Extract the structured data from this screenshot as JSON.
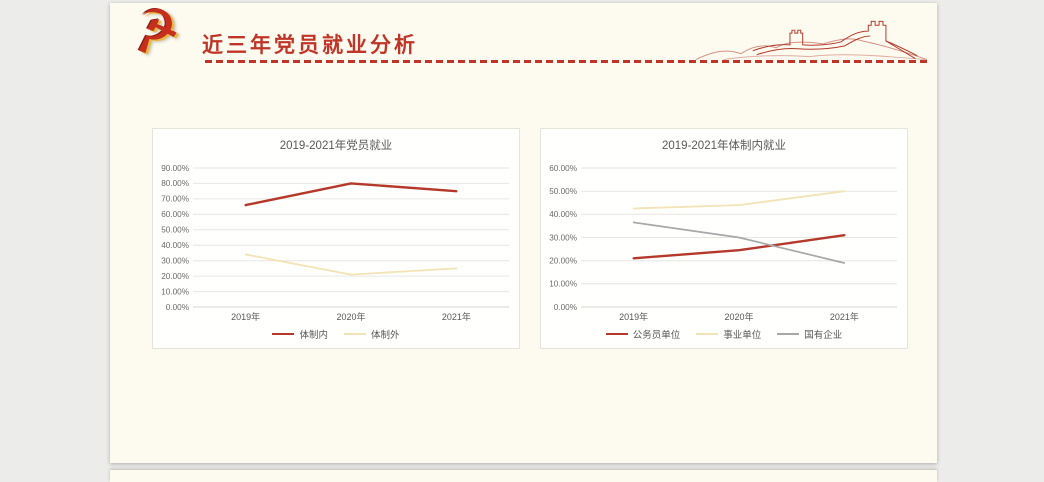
{
  "page": {
    "background": "#ececeb"
  },
  "header": {
    "title": "近三年党员就业分析",
    "title_color": "#bf3629",
    "divider_color": "#bf3629",
    "emblem_icon": {
      "name": "party-emblem-icon",
      "glyph": "☭"
    },
    "wall_icon": {
      "name": "great-wall-illustration",
      "color": "#b5392b"
    }
  },
  "chart_data": [
    {
      "type": "line",
      "title": "2019-2021年党员就业",
      "categories": [
        "2019年",
        "2020年",
        "2021年"
      ],
      "yticks": [
        "90.00%",
        "80.00%",
        "70.00%",
        "60.00%",
        "50.00%",
        "40.00%",
        "30.00%",
        "20.00%",
        "10.00%",
        "0.00%"
      ],
      "ylim": [
        0,
        90
      ],
      "grid": true,
      "legend_position": "bottom",
      "series": [
        {
          "name": "体制内",
          "color": "#b5392b",
          "stroke_width": 2.4,
          "values": [
            66,
            80,
            75
          ]
        },
        {
          "name": "体制外",
          "color": "#f3e4b5",
          "stroke_width": 1.8,
          "values": [
            34,
            21,
            25
          ]
        }
      ]
    },
    {
      "type": "line",
      "title": "2019-2021年体制内就业",
      "categories": [
        "2019年",
        "2020年",
        "2021年"
      ],
      "yticks": [
        "60.00%",
        "50.00%",
        "40.00%",
        "30.00%",
        "20.00%",
        "10.00%",
        "0.00%"
      ],
      "ylim": [
        0,
        60
      ],
      "grid": true,
      "legend_position": "bottom",
      "series": [
        {
          "name": "公务员单位",
          "color": "#b5392b",
          "stroke_width": 2.4,
          "values": [
            21,
            24.5,
            31
          ]
        },
        {
          "name": "事业单位",
          "color": "#f3e4b5",
          "stroke_width": 1.8,
          "values": [
            42.5,
            44,
            50
          ]
        },
        {
          "name": "国有企业",
          "color": "#a8a8a8",
          "stroke_width": 1.7,
          "values": [
            36.5,
            30,
            19
          ]
        }
      ]
    }
  ]
}
